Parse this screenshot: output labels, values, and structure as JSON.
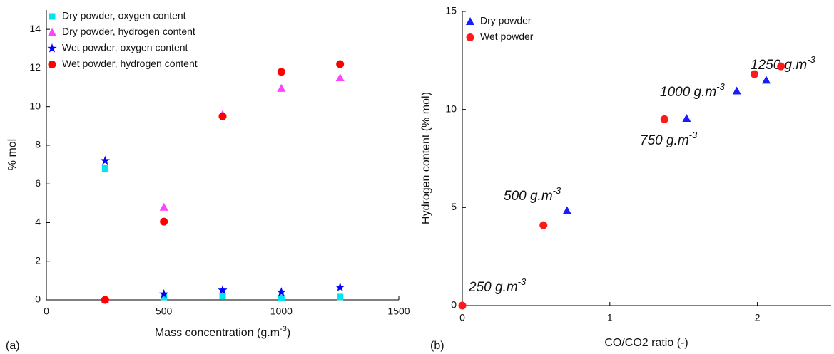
{
  "chart_data": [
    {
      "type": "scatter",
      "panel_label": "(a)",
      "xlabel": "Mass concentration (g.m",
      "xlabel_sup": "-3",
      "xlabel_end": ")",
      "ylabel": "% mol",
      "xlim": [
        0,
        1500
      ],
      "xticks": [
        0,
        500,
        1000,
        1500
      ],
      "ylim": [
        0,
        15
      ],
      "yticks": [
        0,
        2,
        4,
        6,
        8,
        10,
        12,
        14
      ],
      "legend": "upper-left",
      "series": [
        {
          "name": "Dry powder, oxygen content",
          "color": "#00e5ee",
          "marker": "square",
          "x": [
            250,
            500,
            750,
            1000,
            1250
          ],
          "values": [
            6.8,
            0.15,
            0.2,
            0.1,
            0.15
          ]
        },
        {
          "name": "Dry powder, hydrogen content",
          "color": "#ff44ff",
          "marker": "triangle",
          "x": [
            250,
            500,
            750,
            1000,
            1250
          ],
          "values": [
            0,
            4.8,
            9.6,
            10.95,
            11.5
          ]
        },
        {
          "name": "Wet powder, oxygen content",
          "color": "#0000ff",
          "marker": "star",
          "x": [
            250,
            500,
            750,
            1000,
            1250
          ],
          "values": [
            7.2,
            0.3,
            0.5,
            0.4,
            0.65
          ]
        },
        {
          "name": "Wet powder, hydrogen content",
          "color": "#ff0000",
          "marker": "circle",
          "x": [
            250,
            500,
            750,
            1000,
            1250
          ],
          "values": [
            0,
            4.05,
            9.5,
            11.8,
            12.2
          ]
        }
      ]
    },
    {
      "type": "scatter",
      "panel_label": "(b)",
      "xlabel": "CO/CO2 ratio (-)",
      "ylabel": "Hydrogen content (% mol)",
      "xlim": [
        0,
        2.5
      ],
      "xticks": [
        0,
        1,
        2
      ],
      "ylim": [
        0,
        15
      ],
      "yticks": [
        0,
        5,
        10,
        15
      ],
      "legend": "upper-left",
      "annotations": [
        {
          "text": "250 g.m",
          "sup": "-3"
        },
        {
          "text": "500 g.m",
          "sup": "-3"
        },
        {
          "text": "750 g.m",
          "sup": "-3"
        },
        {
          "text": "1000 g.m",
          "sup": "-3"
        },
        {
          "text": "1250 g.m",
          "sup": "-3"
        }
      ],
      "series": [
        {
          "name": "Dry powder",
          "color": "#1a1aff",
          "marker": "triangle",
          "x": [
            0.71,
            1.52,
            1.86,
            2.06
          ],
          "values": [
            4.85,
            9.55,
            10.95,
            11.5
          ]
        },
        {
          "name": "Wet powder",
          "color": "#ff1a1a",
          "marker": "circle",
          "x": [
            0,
            0.55,
            1.37,
            1.98,
            2.16
          ],
          "values": [
            0,
            4.1,
            9.5,
            11.8,
            12.2
          ]
        }
      ]
    }
  ]
}
